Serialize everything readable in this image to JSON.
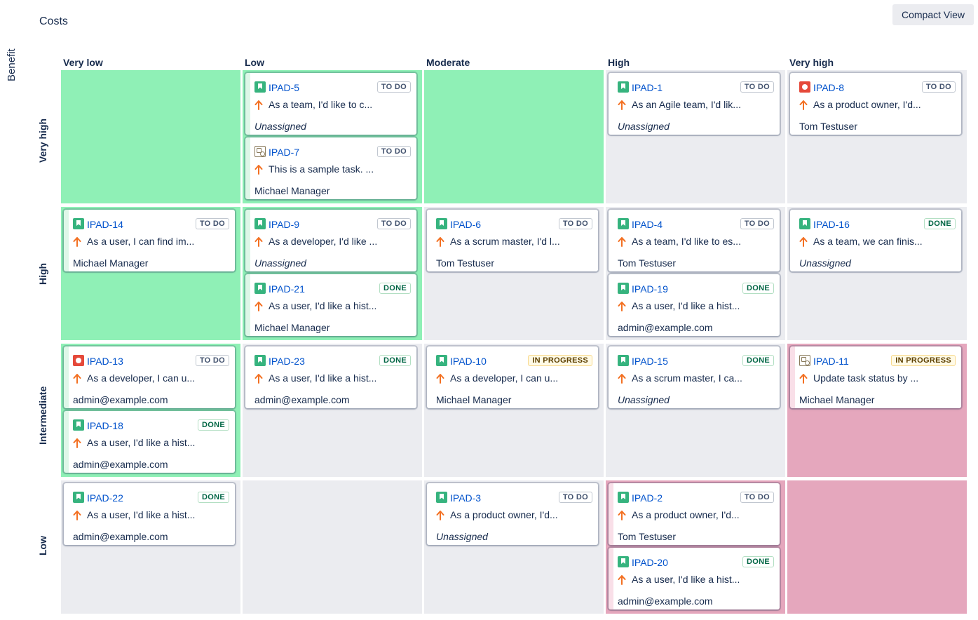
{
  "header": {
    "costs_label": "Costs",
    "benefit_label": "Benefit",
    "compact_view_label": "Compact View"
  },
  "columns": [
    "Very low",
    "Low",
    "Moderate",
    "High",
    "Very high"
  ],
  "rows": [
    "Very high",
    "High",
    "Intermediate",
    "Low"
  ],
  "colors": {
    "green_cell": "#8ff0b6",
    "red_cell": "#e5a7bd",
    "grey_cell": "#ebecf0",
    "link": "#0052cc",
    "priority_arrow": "#f37022"
  },
  "cells": [
    {
      "row": 0,
      "col": 0,
      "tone": "green",
      "cards": []
    },
    {
      "row": 0,
      "col": 1,
      "tone": "green",
      "cards": [
        {
          "key": "IPAD-5",
          "type": "story",
          "status": "TO DO",
          "status_kind": "todo",
          "summary": "As a team, I'd like to c...",
          "assignee": "Unassigned",
          "unassigned": true,
          "priority": "high-arrow-icon"
        },
        {
          "key": "IPAD-7",
          "type": "task",
          "status": "TO DO",
          "status_kind": "todo",
          "summary": "This is a sample task. ...",
          "assignee": "Michael Manager",
          "unassigned": false,
          "priority": "high-arrow-icon"
        }
      ]
    },
    {
      "row": 0,
      "col": 2,
      "tone": "green",
      "cards": []
    },
    {
      "row": 0,
      "col": 3,
      "tone": "grey",
      "cards": [
        {
          "key": "IPAD-1",
          "type": "story",
          "status": "TO DO",
          "status_kind": "todo",
          "summary": "As an Agile team, I'd lik...",
          "assignee": "Unassigned",
          "unassigned": true,
          "priority": "high-arrow-icon"
        }
      ]
    },
    {
      "row": 0,
      "col": 4,
      "tone": "grey",
      "cards": [
        {
          "key": "IPAD-8",
          "type": "bug",
          "status": "TO DO",
          "status_kind": "todo",
          "summary": "As a product owner, I'd...",
          "assignee": "Tom Testuser",
          "unassigned": false,
          "priority": "high-arrow-icon"
        }
      ]
    },
    {
      "row": 1,
      "col": 0,
      "tone": "green",
      "cards": [
        {
          "key": "IPAD-14",
          "type": "story",
          "status": "TO DO",
          "status_kind": "todo",
          "summary": "As a user, I can find im...",
          "assignee": "Michael Manager",
          "unassigned": false,
          "priority": "high-arrow-icon"
        }
      ]
    },
    {
      "row": 1,
      "col": 1,
      "tone": "green",
      "cards": [
        {
          "key": "IPAD-9",
          "type": "story",
          "status": "TO DO",
          "status_kind": "todo",
          "summary": "As a developer, I'd like ...",
          "assignee": "Unassigned",
          "unassigned": true,
          "priority": "high-arrow-icon"
        },
        {
          "key": "IPAD-21",
          "type": "story",
          "status": "DONE",
          "status_kind": "done",
          "summary": "As a user, I'd like a hist...",
          "assignee": "Michael Manager",
          "unassigned": false,
          "priority": "high-arrow-icon"
        }
      ]
    },
    {
      "row": 1,
      "col": 2,
      "tone": "grey",
      "cards": [
        {
          "key": "IPAD-6",
          "type": "story",
          "status": "TO DO",
          "status_kind": "todo",
          "summary": "As a scrum master, I'd l...",
          "assignee": "Tom Testuser",
          "unassigned": false,
          "priority": "high-arrow-icon"
        }
      ]
    },
    {
      "row": 1,
      "col": 3,
      "tone": "grey",
      "cards": [
        {
          "key": "IPAD-4",
          "type": "story",
          "status": "TO DO",
          "status_kind": "todo",
          "summary": "As a team, I'd like to es...",
          "assignee": "Tom Testuser",
          "unassigned": false,
          "priority": "high-arrow-icon"
        },
        {
          "key": "IPAD-19",
          "type": "story",
          "status": "DONE",
          "status_kind": "done",
          "summary": "As a user, I'd like a hist...",
          "assignee": "admin@example.com",
          "unassigned": false,
          "priority": "high-arrow-icon"
        }
      ]
    },
    {
      "row": 1,
      "col": 4,
      "tone": "grey",
      "cards": [
        {
          "key": "IPAD-16",
          "type": "story",
          "status": "DONE",
          "status_kind": "done",
          "summary": "As a team, we can finis...",
          "assignee": "Unassigned",
          "unassigned": true,
          "priority": "high-arrow-icon"
        }
      ]
    },
    {
      "row": 2,
      "col": 0,
      "tone": "green",
      "cards": [
        {
          "key": "IPAD-13",
          "type": "bug",
          "status": "TO DO",
          "status_kind": "todo",
          "summary": "As a developer, I can u...",
          "assignee": "admin@example.com",
          "unassigned": false,
          "priority": "high-arrow-icon"
        },
        {
          "key": "IPAD-18",
          "type": "story",
          "status": "DONE",
          "status_kind": "done",
          "summary": "As a user, I'd like a hist...",
          "assignee": "admin@example.com",
          "unassigned": false,
          "priority": "high-arrow-icon"
        }
      ]
    },
    {
      "row": 2,
      "col": 1,
      "tone": "grey",
      "cards": [
        {
          "key": "IPAD-23",
          "type": "story",
          "status": "DONE",
          "status_kind": "done",
          "summary": "As a user, I'd like a hist...",
          "assignee": "admin@example.com",
          "unassigned": false,
          "priority": "high-arrow-icon"
        }
      ]
    },
    {
      "row": 2,
      "col": 2,
      "tone": "grey",
      "cards": [
        {
          "key": "IPAD-10",
          "type": "story",
          "status": "IN PROGRESS",
          "status_kind": "progress",
          "summary": "As a developer, I can u...",
          "assignee": "Michael Manager",
          "unassigned": false,
          "priority": "high-arrow-icon"
        }
      ]
    },
    {
      "row": 2,
      "col": 3,
      "tone": "grey",
      "cards": [
        {
          "key": "IPAD-15",
          "type": "story",
          "status": "DONE",
          "status_kind": "done",
          "summary": "As a scrum master, I ca...",
          "assignee": "Unassigned",
          "unassigned": true,
          "priority": "high-arrow-icon"
        }
      ]
    },
    {
      "row": 2,
      "col": 4,
      "tone": "red",
      "cards": [
        {
          "key": "IPAD-11",
          "type": "task",
          "status": "IN PROGRESS",
          "status_kind": "progress",
          "summary": "Update task status by ...",
          "assignee": "Michael Manager",
          "unassigned": false,
          "priority": "high-arrow-icon"
        }
      ]
    },
    {
      "row": 3,
      "col": 0,
      "tone": "grey",
      "cards": [
        {
          "key": "IPAD-22",
          "type": "story",
          "status": "DONE",
          "status_kind": "done",
          "summary": "As a user, I'd like a hist...",
          "assignee": "admin@example.com",
          "unassigned": false,
          "priority": "high-arrow-icon"
        }
      ]
    },
    {
      "row": 3,
      "col": 1,
      "tone": "grey",
      "cards": []
    },
    {
      "row": 3,
      "col": 2,
      "tone": "grey",
      "cards": [
        {
          "key": "IPAD-3",
          "type": "story",
          "status": "TO DO",
          "status_kind": "todo",
          "summary": "As a product owner, I'd...",
          "assignee": "Unassigned",
          "unassigned": true,
          "priority": "high-arrow-icon"
        }
      ]
    },
    {
      "row": 3,
      "col": 3,
      "tone": "red",
      "cards": [
        {
          "key": "IPAD-2",
          "type": "story",
          "status": "TO DO",
          "status_kind": "todo",
          "summary": "As a product owner, I'd...",
          "assignee": "Tom Testuser",
          "unassigned": false,
          "priority": "high-arrow-icon"
        },
        {
          "key": "IPAD-20",
          "type": "story",
          "status": "DONE",
          "status_kind": "done",
          "summary": "As a user, I'd like a hist...",
          "assignee": "admin@example.com",
          "unassigned": false,
          "priority": "high-arrow-icon"
        }
      ]
    },
    {
      "row": 3,
      "col": 4,
      "tone": "red",
      "cards": []
    }
  ]
}
